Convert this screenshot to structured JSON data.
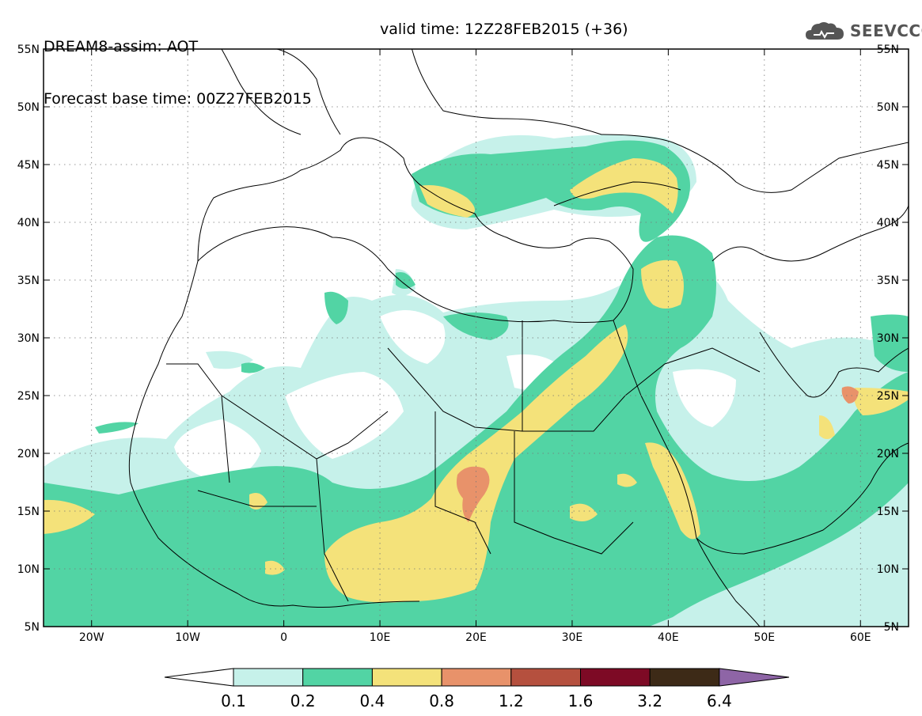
{
  "header": {
    "title": "DREAM8-assim: AOT",
    "base_time": "Forecast base time: 00Z27FEB2015",
    "valid_time": "valid time: 12Z28FEB2015 (+36)"
  },
  "logo": {
    "icon": "cloud-icon",
    "text": "SEEVCCC"
  },
  "map": {
    "lon_range": [
      -25,
      65
    ],
    "lat_range": [
      5,
      55
    ],
    "lat_ticks": [
      {
        "v": 55,
        "label": "55N"
      },
      {
        "v": 50,
        "label": "50N"
      },
      {
        "v": 45,
        "label": "45N"
      },
      {
        "v": 40,
        "label": "40N"
      },
      {
        "v": 35,
        "label": "35N"
      },
      {
        "v": 30,
        "label": "30N"
      },
      {
        "v": 25,
        "label": "25N"
      },
      {
        "v": 20,
        "label": "20N"
      },
      {
        "v": 15,
        "label": "15N"
      },
      {
        "v": 10,
        "label": "10N"
      },
      {
        "v": 5,
        "label": "5N"
      }
    ],
    "lon_ticks": [
      {
        "v": -20,
        "label": "20W"
      },
      {
        "v": -10,
        "label": "10W"
      },
      {
        "v": 0,
        "label": "0"
      },
      {
        "v": 10,
        "label": "10E"
      },
      {
        "v": 20,
        "label": "20E"
      },
      {
        "v": 30,
        "label": "30E"
      },
      {
        "v": 40,
        "label": "40E"
      },
      {
        "v": 50,
        "label": "50E"
      },
      {
        "v": 60,
        "label": "60E"
      }
    ]
  },
  "colorbar": {
    "colors": [
      "#ffffff",
      "#c6f1ea",
      "#52d4a4",
      "#f4e27a",
      "#e8926a",
      "#b5503e",
      "#7d0a25",
      "#3d2a17",
      "#8e65a6"
    ],
    "labels": [
      "0.1",
      "0.2",
      "0.4",
      "0.8",
      "1.2",
      "1.6",
      "3.2",
      "6.4"
    ]
  }
}
